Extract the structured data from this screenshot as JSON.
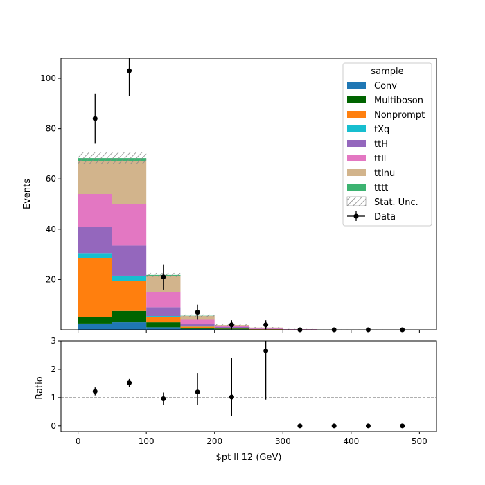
{
  "chart_data": [
    {
      "type": "bar",
      "stacked": true,
      "ylabel": "Events",
      "ylim": [
        0,
        108
      ],
      "xlim": [
        -25,
        525
      ],
      "yticks": [
        20,
        40,
        60,
        80,
        100
      ],
      "bin_edges": [
        0,
        50,
        100,
        150,
        200,
        250,
        300,
        350,
        400,
        450,
        500
      ],
      "legend_title": "sample",
      "legend_placement": "top-right",
      "series": [
        {
          "name": "Conv",
          "color": "#1f77b4",
          "values": [
            2.5,
            3.0,
            1.0,
            0.3,
            0.2,
            0.1,
            0.05,
            0.0,
            0.0,
            0.0
          ]
        },
        {
          "name": "Multiboson",
          "color": "#006400",
          "values": [
            2.5,
            4.5,
            2.0,
            0.5,
            0.3,
            0.1,
            0.05,
            0.0,
            0.0,
            0.0
          ]
        },
        {
          "name": "Nonprompt",
          "color": "#ff7f0e",
          "values": [
            23.5,
            12.0,
            2.0,
            0.5,
            0.3,
            0.1,
            0.0,
            0.0,
            0.0,
            0.0
          ]
        },
        {
          "name": "tXq",
          "color": "#17becf",
          "values": [
            2.0,
            2.0,
            0.5,
            0.1,
            0.0,
            0.0,
            0.0,
            0.0,
            0.0,
            0.0
          ]
        },
        {
          "name": "ttH",
          "color": "#9467bd",
          "values": [
            10.5,
            12.0,
            3.5,
            0.8,
            0.3,
            0.1,
            0.05,
            0.05,
            0.05,
            0.0
          ]
        },
        {
          "name": "ttll",
          "color": "#e377c2",
          "values": [
            13.0,
            16.5,
            6.0,
            1.8,
            0.5,
            0.2,
            0.1,
            0.05,
            0.05,
            0.0
          ]
        },
        {
          "name": "ttlnu",
          "color": "#d2b48c",
          "values": [
            13.0,
            17.0,
            6.5,
            1.5,
            0.3,
            0.3,
            0.0,
            0.0,
            0.0,
            0.0
          ]
        },
        {
          "name": "tttt",
          "color": "#3cb371",
          "values": [
            1.3,
            1.3,
            0.3,
            0.1,
            0.0,
            0.0,
            0.0,
            0.0,
            0.0,
            0.0
          ]
        }
      ],
      "stat_unc": {
        "name": "Stat. Unc.",
        "values": [
          2.2,
          2.2,
          0.8,
          0.5,
          0.3,
          0.2,
          0.1,
          0.05,
          0.05,
          0.0
        ]
      },
      "data": {
        "name": "Data",
        "x": [
          25,
          75,
          125,
          175,
          225,
          275,
          325,
          375,
          425,
          475
        ],
        "y": [
          84,
          103,
          21,
          7,
          2,
          2,
          0,
          0,
          0,
          0
        ],
        "yerr": [
          10,
          10,
          5,
          3,
          1.8,
          1.8,
          0,
          0,
          0,
          0
        ]
      }
    },
    {
      "type": "scatter",
      "ylabel": "Ratio",
      "xlabel": "$pt ll 12 (GeV)",
      "ylim": [
        -0.2,
        3.0
      ],
      "xlim": [
        -25,
        525
      ],
      "xticks": [
        0,
        100,
        200,
        300,
        400,
        500
      ],
      "yticks": [
        0,
        1,
        2,
        3
      ],
      "reference_line": 1,
      "x": [
        25,
        75,
        125,
        175,
        225,
        275,
        325,
        375,
        425,
        475
      ],
      "y": [
        1.22,
        1.52,
        0.96,
        1.2,
        1.02,
        2.65,
        0,
        0,
        0,
        0
      ],
      "yerr_low": [
        0.14,
        0.14,
        0.22,
        0.45,
        0.68,
        1.72,
        0,
        0,
        0,
        0
      ],
      "yerr_high": [
        0.14,
        0.14,
        0.22,
        0.65,
        1.38,
        0.38,
        0,
        0,
        0,
        0
      ]
    }
  ]
}
